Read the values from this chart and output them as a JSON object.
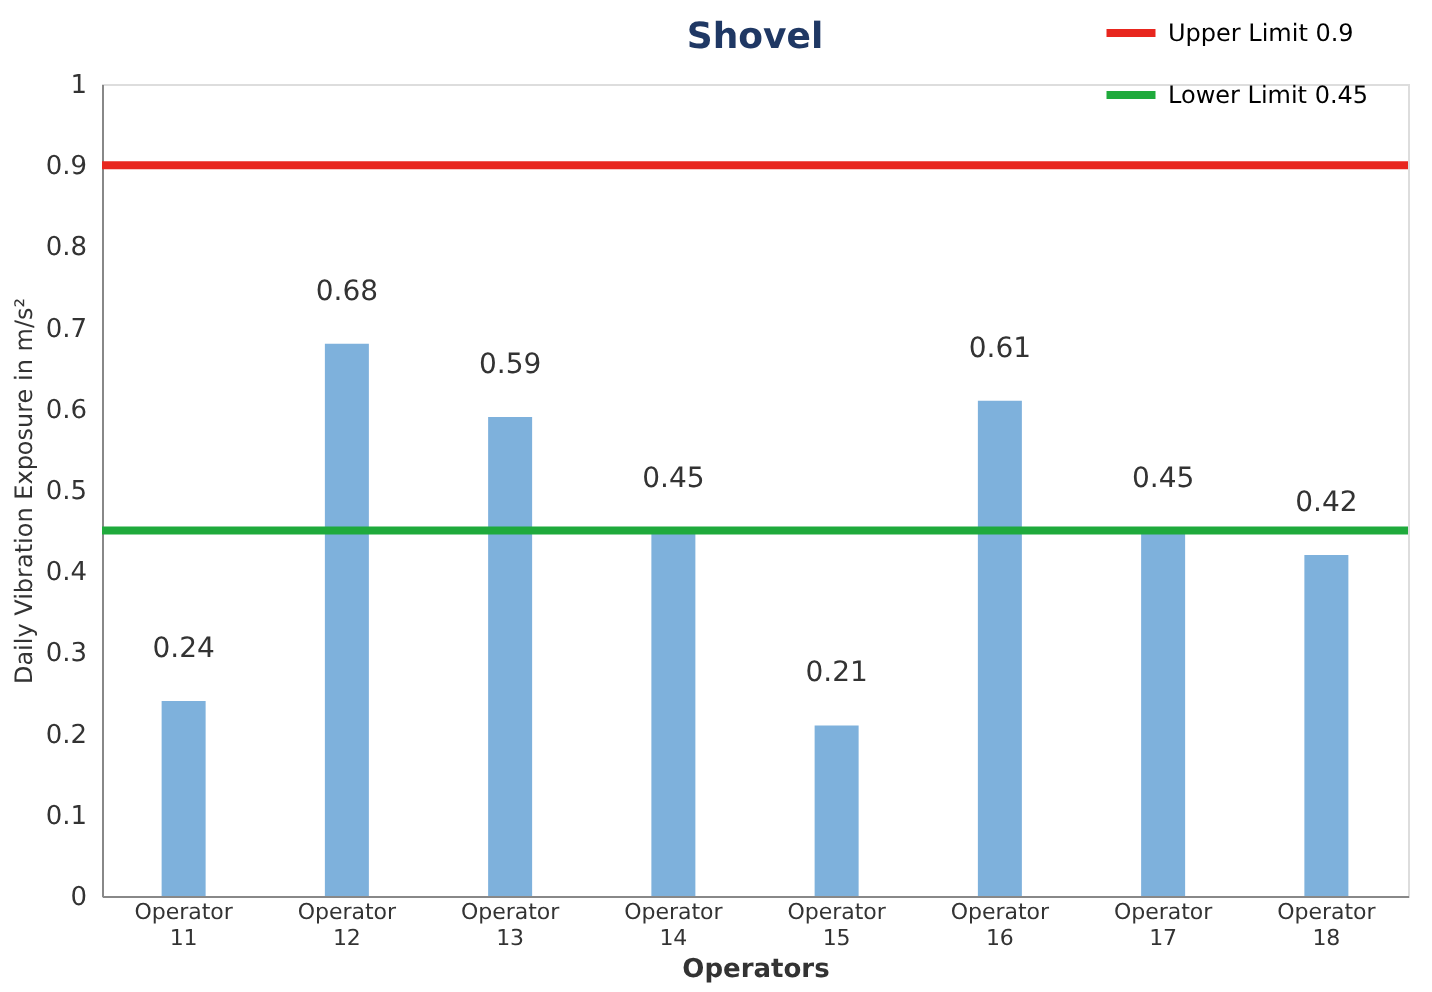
{
  "chart_data": {
    "type": "bar",
    "title": "Shovel",
    "xlabel": "Operators",
    "ylabel": "Daily Vibration Exposure in m/s²",
    "categories": [
      "Operator 11",
      "Operator 12",
      "Operator 13",
      "Operator 14",
      "Operator 15",
      "Operator 16",
      "Operator 17",
      "Operator 18"
    ],
    "values": [
      0.24,
      0.68,
      0.59,
      0.45,
      0.21,
      0.61,
      0.45,
      0.42
    ],
    "color": "#7eb1dc",
    "ylim": [
      0,
      1
    ],
    "yticks": [
      0,
      0.1,
      0.2,
      0.3,
      0.4,
      0.5,
      0.6,
      0.7,
      0.8,
      0.9,
      1
    ],
    "grid": false,
    "data_labels": true,
    "legend": "top right",
    "ref_lines": [
      {
        "axis": "y",
        "value": 0.9,
        "label": "Upper Limit 0.9",
        "color": "#e8261e"
      },
      {
        "axis": "y",
        "value": 0.45,
        "label": "Lower Limit 0.45",
        "color": "#1faa3c"
      }
    ]
  }
}
